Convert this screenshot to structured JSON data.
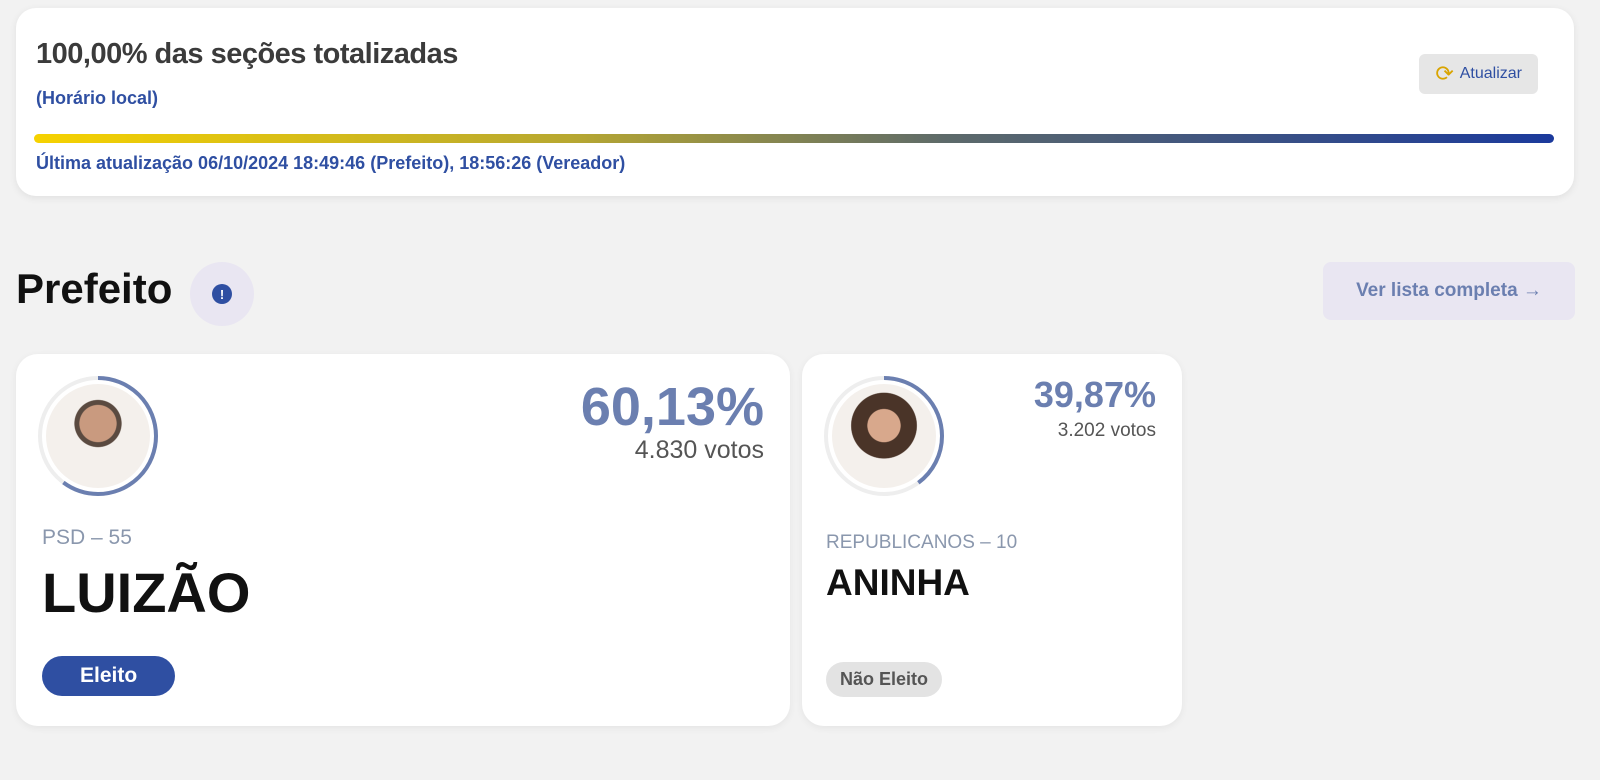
{
  "status": {
    "title": "100,00% das seções totalizadas",
    "local_time": "(Horário local)",
    "refresh_label": "Atualizar",
    "refresh_icon": "refresh-icon",
    "progress_percent": 100,
    "last_update": "Última atualização 06/10/2024 18:49:46 (Prefeito), 18:56:26 (Vereador)"
  },
  "section": {
    "title": "Prefeito",
    "info_icon": "!",
    "see_all": "Ver lista completa",
    "see_all_icon": "→"
  },
  "candidates": [
    {
      "percent": "60,13%",
      "percent_value": 60.13,
      "votes": "4.830 votos",
      "party": "PSD – 55",
      "name": "LUIZÃO",
      "status": "Eleito"
    },
    {
      "percent": "39,87%",
      "percent_value": 39.87,
      "votes": "3.202 votos",
      "party": "REPUBLICANOS – 10",
      "name": "ANINHA",
      "status": "Não Eleito"
    }
  ],
  "colors": {
    "accent": "#2f4fa2",
    "ring": "#6b7fb0"
  }
}
